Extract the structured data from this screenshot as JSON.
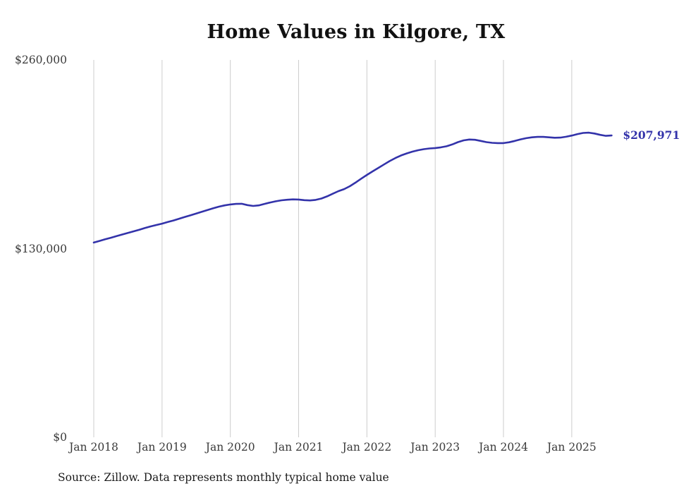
{
  "title": "Home Values in Kilgore, TX",
  "source_note": "Source: Zillow. Data represents monthly typical home value",
  "colors": {
    "line": "#3333aa",
    "grid": "#cccccc",
    "tick_text": "#3a3a3a",
    "title_text": "#111111"
  },
  "chart_data": {
    "type": "line",
    "title": "Home Values in Kilgore, TX",
    "xlabel": "",
    "ylabel": "",
    "ylim": [
      0,
      260000
    ],
    "grid": "vertical-only",
    "legend": "none",
    "x_start": "Jan 2018",
    "x_end": "Aug 2025",
    "x_interval": "monthly",
    "x_tick_labels": [
      "Jan 2018",
      "Jan 2019",
      "Jan 2020",
      "Jan 2021",
      "Jan 2022",
      "Jan 2023",
      "Jan 2024",
      "Jan 2025"
    ],
    "y_ticks": [
      {
        "value": 260000,
        "label": "$260,000"
      },
      {
        "value": 130000,
        "label": "$130,000"
      },
      {
        "value": 0,
        "label": "$0"
      }
    ],
    "series": [
      {
        "name": "Typical home value",
        "values": [
          134200,
          135300,
          136400,
          137500,
          138600,
          139700,
          140800,
          141900,
          143000,
          144200,
          145300,
          146300,
          147200,
          148300,
          149400,
          150600,
          151800,
          153000,
          154200,
          155400,
          156600,
          157800,
          158900,
          159800,
          160400,
          160800,
          160900,
          160000,
          159400,
          159800,
          160800,
          161800,
          162600,
          163300,
          163700,
          163900,
          163800,
          163400,
          163200,
          163600,
          164500,
          166000,
          167800,
          169600,
          171000,
          173000,
          175500,
          178200,
          180800,
          183200,
          185600,
          188000,
          190300,
          192400,
          194200,
          195600,
          196800,
          197800,
          198500,
          199000,
          199300,
          199800,
          200500,
          201800,
          203400,
          204600,
          205200,
          205000,
          204200,
          203400,
          202900,
          202700,
          202700,
          203300,
          204200,
          205300,
          206100,
          206700,
          207000,
          207000,
          206700,
          206400,
          206500,
          207100,
          207900,
          208900,
          209700,
          209900,
          209300,
          208400,
          207700,
          207971
        ]
      }
    ],
    "last_value": 207971,
    "last_value_label": "$207,971"
  }
}
